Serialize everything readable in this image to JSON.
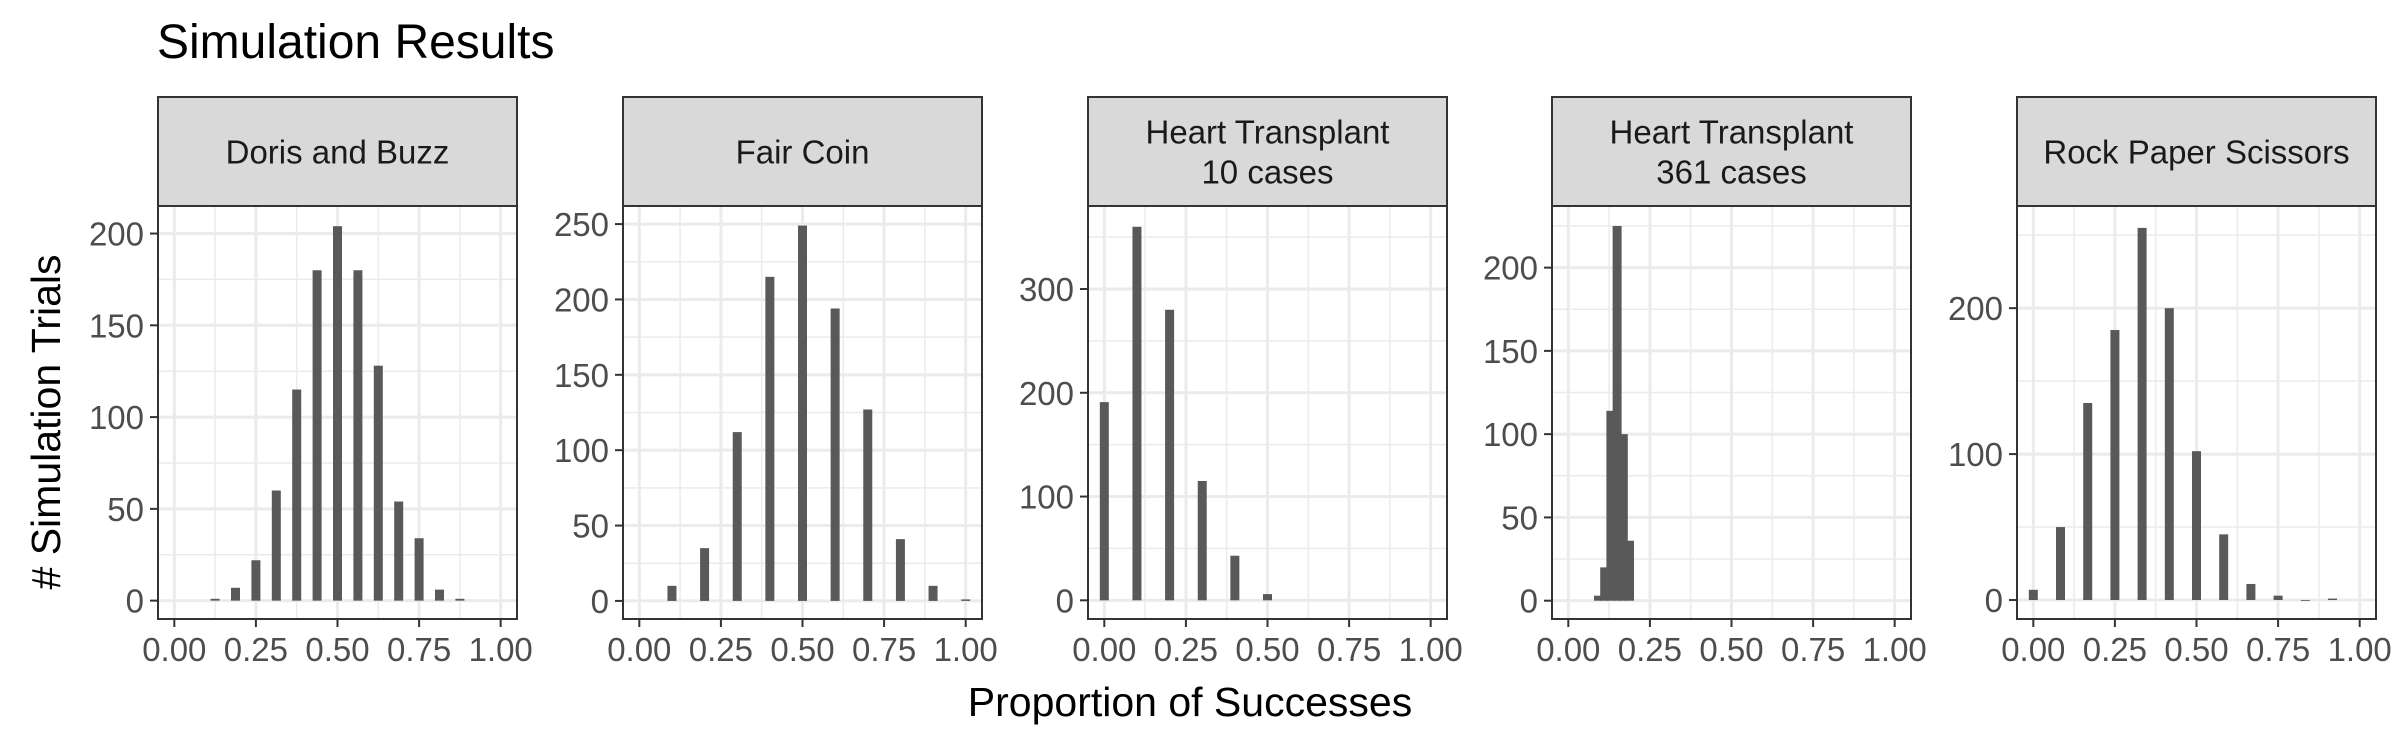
{
  "figure": {
    "title": "Simulation Results",
    "xlabel": "Proportion of Successes",
    "ylabel": "# Simulation Trials"
  },
  "chart_data": [
    {
      "type": "bar",
      "panel": "Doris and Buzz",
      "strip_lines": [
        "Doris and Buzz"
      ],
      "xlim": [
        -0.05,
        1.05
      ],
      "ylim": [
        -10,
        215
      ],
      "xticks": [
        0,
        0.25,
        0.5,
        0.75,
        1
      ],
      "xtick_labels": [
        "0.00",
        "0.25",
        "0.50",
        "0.75",
        "1.00"
      ],
      "yticks": [
        0,
        50,
        100,
        150,
        200
      ],
      "ytick_labels": [
        "0",
        "50",
        "100",
        "150",
        "200"
      ],
      "x": [
        0.125,
        0.1875,
        0.25,
        0.3125,
        0.375,
        0.4375,
        0.5,
        0.5625,
        0.625,
        0.6875,
        0.75,
        0.8125,
        0.875
      ],
      "values": [
        1,
        7,
        22,
        60,
        115,
        180,
        204,
        180,
        128,
        54,
        34,
        6,
        1
      ],
      "grid": true
    },
    {
      "type": "bar",
      "panel": "Fair Coin",
      "strip_lines": [
        "Fair Coin"
      ],
      "xlim": [
        -0.05,
        1.05
      ],
      "ylim": [
        -12,
        262
      ],
      "xticks": [
        0,
        0.25,
        0.5,
        0.75,
        1
      ],
      "xtick_labels": [
        "0.00",
        "0.25",
        "0.50",
        "0.75",
        "1.00"
      ],
      "yticks": [
        0,
        50,
        100,
        150,
        200,
        250
      ],
      "ytick_labels": [
        "0",
        "50",
        "100",
        "150",
        "200",
        "250"
      ],
      "x": [
        0.1,
        0.2,
        0.3,
        0.4,
        0.5,
        0.6,
        0.7,
        0.8,
        0.9,
        1.0
      ],
      "values": [
        10,
        35,
        112,
        215,
        249,
        194,
        127,
        41,
        10,
        1
      ],
      "grid": true
    },
    {
      "type": "bar",
      "panel": "Heart Transplant 10 cases",
      "strip_lines": [
        "Heart Transplant",
        "10 cases"
      ],
      "xlim": [
        -0.05,
        1.05
      ],
      "ylim": [
        -18,
        380
      ],
      "xticks": [
        0,
        0.25,
        0.5,
        0.75,
        1
      ],
      "xtick_labels": [
        "0.00",
        "0.25",
        "0.50",
        "0.75",
        "1.00"
      ],
      "yticks": [
        0,
        100,
        200,
        300
      ],
      "ytick_labels": [
        "0",
        "100",
        "200",
        "300"
      ],
      "x": [
        0.0,
        0.1,
        0.2,
        0.3,
        0.4,
        0.5
      ],
      "values": [
        191,
        360,
        280,
        115,
        43,
        6
      ],
      "grid": true
    },
    {
      "type": "bar",
      "panel": "Heart Transplant 361 cases",
      "strip_lines": [
        "Heart Transplant",
        "361 cases"
      ],
      "xlim": [
        -0.05,
        1.05
      ],
      "ylim": [
        -11,
        237
      ],
      "xticks": [
        0,
        0.25,
        0.5,
        0.75,
        1
      ],
      "xtick_labels": [
        "0.00",
        "0.25",
        "0.50",
        "0.75",
        "1.00"
      ],
      "yticks": [
        0,
        50,
        100,
        150,
        200
      ],
      "ytick_labels": [
        "0",
        "50",
        "100",
        "150",
        "200"
      ],
      "x": [
        0.0925,
        0.1115,
        0.1305,
        0.1495,
        0.1685,
        0.1875
      ],
      "values": [
        3,
        20,
        114,
        225,
        100,
        36
      ],
      "grid": true
    },
    {
      "type": "bar",
      "panel": "Rock Paper Scissors",
      "strip_lines": [
        "Rock Paper Scissors"
      ],
      "xlim": [
        -0.05,
        1.05
      ],
      "ylim": [
        -13,
        270
      ],
      "xticks": [
        0,
        0.25,
        0.5,
        0.75,
        1
      ],
      "xtick_labels": [
        "0.00",
        "0.25",
        "0.50",
        "0.75",
        "1.00"
      ],
      "yticks": [
        0,
        100,
        200
      ],
      "ytick_labels": [
        "0",
        "100",
        "200"
      ],
      "x": [
        0.0,
        0.0833,
        0.1667,
        0.25,
        0.3333,
        0.4167,
        0.5,
        0.5833,
        0.6667,
        0.75,
        0.8333,
        0.9167
      ],
      "values": [
        7,
        50,
        135,
        185,
        255,
        200,
        102,
        45,
        11,
        3,
        0,
        1
      ],
      "grid": true
    }
  ],
  "colors": {
    "bar": "#595959",
    "panel_border": "#333333",
    "strip_fill": "#d9d9d9",
    "grid": "#ebebeb",
    "text": "#000000",
    "tick_text": "#4d4d4d"
  }
}
